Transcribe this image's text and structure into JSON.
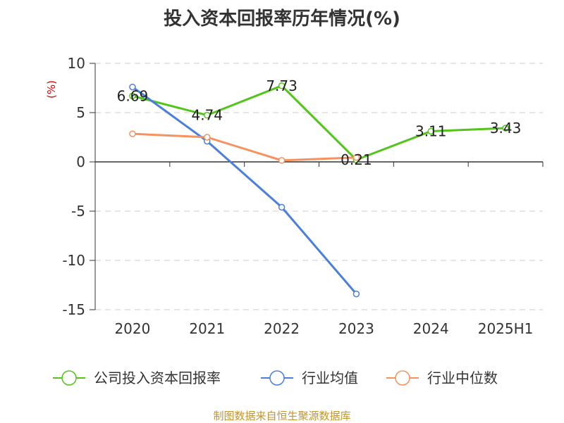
{
  "title": "投入资本回报率历年情况(%)",
  "source": "制图数据来自恒生聚源数据库",
  "chart_data": {
    "type": "line",
    "title": "投入资本回报率历年情况(%)",
    "ylabel": "(%)",
    "categories": [
      "2020",
      "2021",
      "2022",
      "2023",
      "2024",
      "2025H1"
    ],
    "ylim": [
      -15,
      10
    ],
    "yticks": [
      10,
      5,
      0,
      -5,
      -10,
      -15
    ],
    "grid": true,
    "legend_position": "bottom",
    "series": [
      {
        "name": "公司投入资本回报率",
        "color": "#52c41a",
        "values": [
          6.69,
          4.74,
          7.73,
          0.21,
          3.11,
          3.43
        ],
        "labels": [
          "6.69",
          "4.74",
          "7.73",
          "0.21",
          "3.11",
          "3.43"
        ]
      },
      {
        "name": "行业均值",
        "color": "#4a7fdb",
        "values": [
          7.6,
          2.1,
          -4.6,
          -13.4,
          null,
          null
        ]
      },
      {
        "name": "行业中位数",
        "color": "#f5925e",
        "values": [
          2.85,
          2.5,
          0.15,
          0.45,
          null,
          null
        ]
      }
    ]
  }
}
